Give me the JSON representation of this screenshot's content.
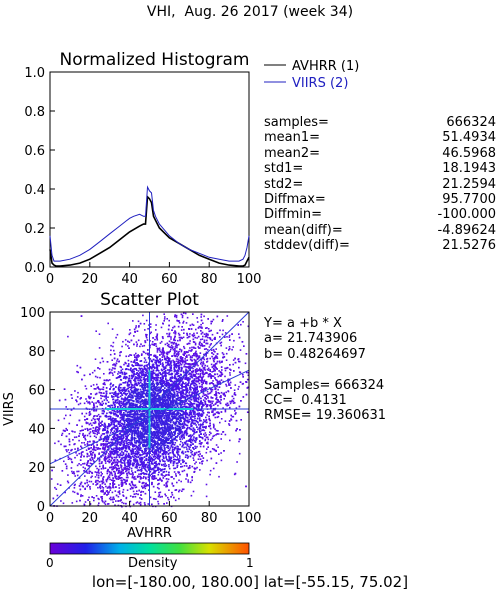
{
  "page_title": "VHI,  Aug. 26 2017 (week 34)",
  "legend": [
    {
      "label": "AVHRR (1)",
      "color": "#000000"
    },
    {
      "label": "VIIRS (2)",
      "color": "#2020c0"
    }
  ],
  "stats": [
    {
      "label": "samples=",
      "value": "666324"
    },
    {
      "label": "mean1=",
      "value": "51.4934"
    },
    {
      "label": "mean2=",
      "value": "46.5968"
    },
    {
      "label": "std1=",
      "value": "18.1943"
    },
    {
      "label": "std2=",
      "value": "21.2594"
    },
    {
      "label": "Diffmax=",
      "value": "95.7700"
    },
    {
      "label": "Diffmin=",
      "value": "-100.000"
    },
    {
      "label": "mean(diff)=",
      "value": "-4.89624"
    },
    {
      "label": "stddev(diff)=",
      "value": "21.5276"
    }
  ],
  "fit": {
    "equation": "Y= a +b * X",
    "a": "a= 21.743906",
    "b": "b= 0.48264697",
    "samples": "Samples= 666324",
    "cc": "CC=  0.4131",
    "rmse": "RMSE= 19.360631"
  },
  "colorbar": {
    "min_label": "0",
    "max_label": "1",
    "title": "Density"
  },
  "footer": "lon=[-180.00, 180.00] lat=[-55.15, 75.02]",
  "chart_data": [
    {
      "type": "line",
      "title": "Normalized Histogram",
      "xlim": [
        0,
        100
      ],
      "ylim": [
        0,
        1.0
      ],
      "xticks": [
        "0",
        "20",
        "40",
        "60",
        "80",
        "100"
      ],
      "yticks": [
        "0.0",
        "0.2",
        "0.4",
        "0.6",
        "0.8",
        "1.0"
      ],
      "series": [
        {
          "name": "AVHRR (1)",
          "color": "#000000",
          "x": [
            0,
            1,
            2,
            3,
            5,
            10,
            15,
            20,
            25,
            30,
            35,
            40,
            45,
            47,
            48,
            49,
            50,
            51,
            52,
            53,
            55,
            60,
            65,
            70,
            75,
            80,
            85,
            90,
            95,
            97,
            98,
            99,
            100
          ],
          "y": [
            0.09,
            0.02,
            0.01,
            0.005,
            0.005,
            0.01,
            0.02,
            0.04,
            0.07,
            0.1,
            0.14,
            0.18,
            0.21,
            0.22,
            0.22,
            0.36,
            0.35,
            0.33,
            0.26,
            0.24,
            0.2,
            0.15,
            0.12,
            0.09,
            0.06,
            0.04,
            0.02,
            0.01,
            0.005,
            0.005,
            0.01,
            0.03,
            0.05
          ]
        },
        {
          "name": "VIIRS (2)",
          "color": "#2020c0",
          "x": [
            0,
            1,
            2,
            3,
            5,
            10,
            15,
            20,
            25,
            30,
            35,
            40,
            42,
            45,
            47,
            48,
            49,
            50,
            51,
            52,
            53,
            55,
            60,
            65,
            70,
            75,
            80,
            85,
            90,
            95,
            97,
            98,
            99,
            100
          ],
          "y": [
            0.16,
            0.06,
            0.03,
            0.03,
            0.03,
            0.04,
            0.06,
            0.09,
            0.13,
            0.17,
            0.21,
            0.25,
            0.26,
            0.27,
            0.26,
            0.26,
            0.41,
            0.39,
            0.38,
            0.29,
            0.26,
            0.22,
            0.16,
            0.12,
            0.09,
            0.07,
            0.05,
            0.04,
            0.03,
            0.03,
            0.04,
            0.06,
            0.1,
            0.16
          ]
        }
      ]
    },
    {
      "type": "scatter",
      "title": "Scatter Plot",
      "xlabel": "AVHRR",
      "ylabel": "VIIRS",
      "xlim": [
        0,
        100
      ],
      "ylim": [
        0,
        100
      ],
      "xticks": [
        "0",
        "20",
        "40",
        "60",
        "80",
        "100"
      ],
      "yticks": [
        "0",
        "20",
        "40",
        "60",
        "80",
        "100"
      ],
      "density_center": [
        51.5,
        46.6
      ],
      "density_sd": [
        18.2,
        21.3
      ],
      "correlation": 0.4131,
      "fit_line": {
        "a": 21.743906,
        "b": 0.48264697
      },
      "reference_lines": {
        "x": 50,
        "y": 50,
        "diagonal": true
      },
      "colorbar": {
        "min": 0,
        "max": 1,
        "label": "Density"
      }
    }
  ]
}
